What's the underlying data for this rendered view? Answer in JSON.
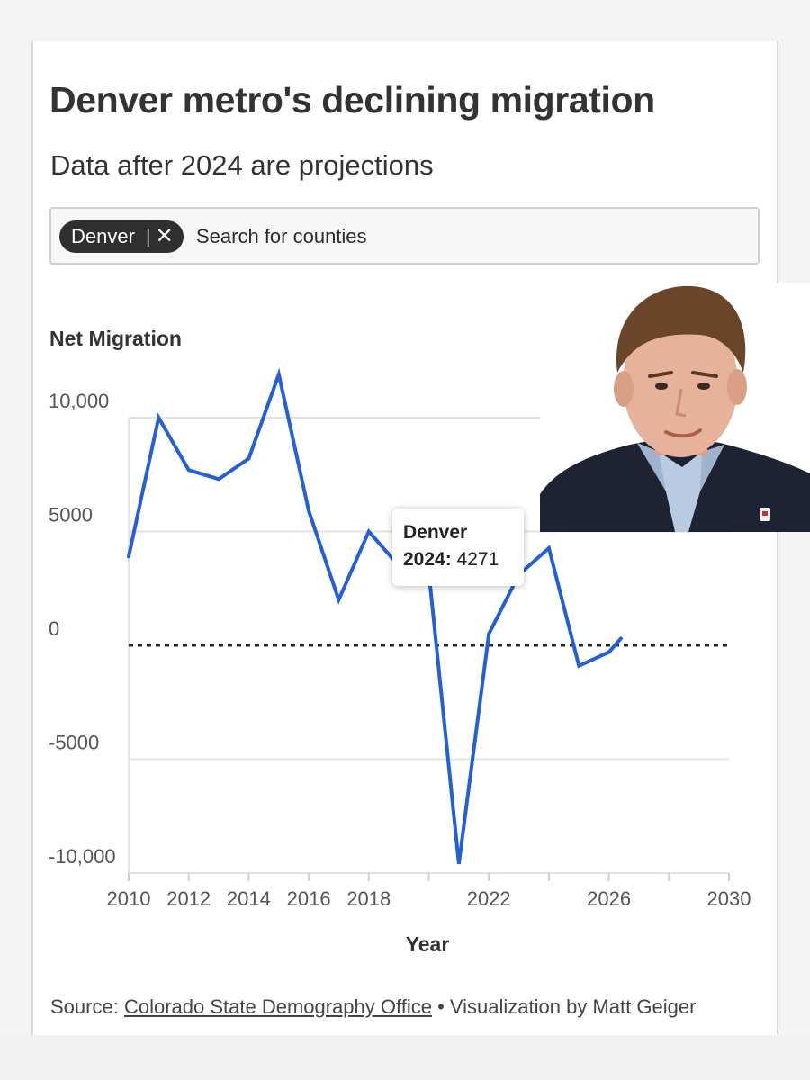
{
  "title": "Denver metro's declining migration",
  "subtitle": "Data after 2024 are projections",
  "search": {
    "chip_label": "Denver",
    "chip_separator": "|",
    "chip_close": "✕",
    "placeholder": "Search for counties"
  },
  "colors": {
    "line": "#2360d8",
    "text": "#333333",
    "grid": "#e3e3e3",
    "zero_line": "#2b2b2b"
  },
  "tooltip": {
    "series": "Denver",
    "year_label": "2024:",
    "value_label": "4271"
  },
  "source": {
    "prefix": "Source:",
    "link_text": "Colorado State Demography Office",
    "suffix": "• Visualization by Matt Geiger"
  },
  "chart_data": {
    "type": "line",
    "title": "Denver metro's declining migration",
    "subtitle": "Data after 2024 are projections",
    "xlabel": "Year",
    "ylabel": "Net Migration",
    "xlim": [
      2010,
      2030
    ],
    "ylim": [
      -10000,
      12000
    ],
    "x_ticks": [
      2010,
      2012,
      2014,
      2016,
      2018,
      2020,
      2022,
      2024,
      2026,
      2028,
      2030
    ],
    "x_tick_labels": [
      "2010",
      "2012",
      "2014",
      "2016",
      "2018",
      "",
      "2022",
      "",
      "2026",
      "",
      "2030"
    ],
    "y_ticks": [
      -10000,
      -5000,
      0,
      5000,
      10000
    ],
    "y_tick_labels": [
      "-10,000",
      "-5000",
      "0",
      "5000",
      "10,000"
    ],
    "grid": true,
    "series": [
      {
        "name": "Denver",
        "x": [
          2010,
          2011,
          2012,
          2013,
          2014,
          2015,
          2016,
          2017,
          2018,
          2019,
          2020,
          2021,
          2022,
          2023,
          2024,
          2025,
          2026,
          2026.4
        ],
        "y": [
          3900,
          10000,
          7700,
          7300,
          8200,
          11900,
          5900,
          2000,
          5000,
          3500,
          3200,
          -9600,
          500,
          3100,
          4271,
          -900,
          -300,
          300
        ]
      }
    ],
    "reference_line": {
      "y": 0,
      "style": "dotted"
    },
    "highlight": {
      "x": 2024,
      "y": 4271
    }
  }
}
